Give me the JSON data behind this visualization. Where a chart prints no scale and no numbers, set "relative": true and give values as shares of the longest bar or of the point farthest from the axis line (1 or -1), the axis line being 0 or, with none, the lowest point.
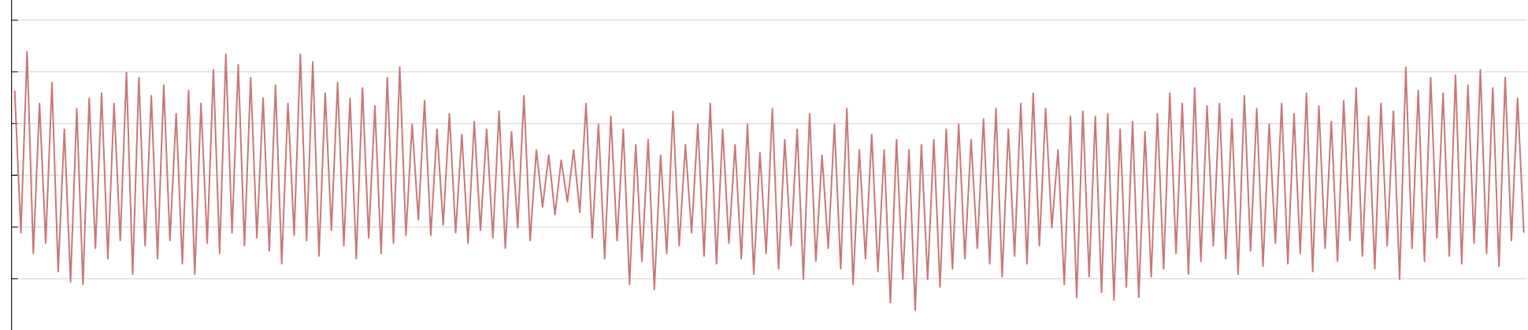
{
  "chart_data": {
    "type": "line",
    "relative": true,
    "grid": "y",
    "categories": [
      null,
      null,
      null,
      null,
      null,
      null,
      null,
      null,
      null,
      null,
      null,
      null,
      null,
      null,
      null,
      null,
      null,
      null,
      null,
      null,
      null,
      null,
      null,
      null,
      null,
      null,
      null,
      null,
      null,
      null,
      null,
      null,
      null,
      null,
      null,
      null,
      null,
      null,
      null,
      null,
      null,
      null,
      null,
      null,
      null,
      null,
      null,
      null,
      null,
      null,
      null,
      null,
      null,
      null,
      null,
      null,
      null,
      null,
      null,
      null,
      null,
      null,
      null,
      null,
      null,
      null,
      null,
      null,
      null,
      null,
      null,
      null,
      null,
      null,
      null,
      null,
      null,
      null,
      null,
      null,
      null,
      null,
      null,
      null,
      null,
      null,
      null,
      null,
      null,
      null,
      null,
      null,
      null,
      null,
      null,
      null,
      null,
      null,
      null,
      null,
      null,
      null,
      null,
      null,
      null,
      null,
      null,
      null,
      null,
      null,
      null,
      null,
      null,
      null,
      null,
      null,
      null,
      null,
      null,
      null,
      null,
      null,
      null,
      null,
      null,
      null,
      null,
      null,
      null,
      null,
      null,
      null,
      null,
      null,
      null,
      null,
      null,
      null,
      null,
      null,
      null,
      null,
      null,
      null,
      null,
      null,
      null,
      null,
      null,
      null,
      null,
      null,
      null,
      null,
      null,
      null,
      null,
      null,
      null,
      null,
      null,
      null,
      null,
      null,
      null,
      null,
      null,
      null,
      null,
      null,
      null,
      null,
      null,
      null,
      null,
      null,
      null,
      null,
      null,
      null,
      null,
      null,
      null,
      null,
      null,
      null,
      null,
      null,
      null,
      null,
      null,
      null,
      null,
      null,
      null,
      null,
      null,
      null,
      null,
      null,
      null,
      null,
      null,
      null,
      null,
      null,
      null,
      null,
      null,
      null,
      null,
      null,
      null,
      null,
      null,
      null,
      null,
      null,
      null,
      null,
      null,
      null,
      null,
      null,
      null,
      null,
      null,
      null,
      null,
      null,
      null,
      null,
      null,
      null,
      null,
      null,
      null,
      null,
      null,
      null,
      null,
      null,
      null,
      null
    ],
    "series": [
      {
        "color": "#c87878",
        "values": [
          0.85,
          0.3,
          1.0,
          0.22,
          0.8,
          0.26,
          0.88,
          0.15,
          0.7,
          0.11,
          0.78,
          0.1,
          0.82,
          0.24,
          0.84,
          0.2,
          0.8,
          0.27,
          0.92,
          0.14,
          0.9,
          0.25,
          0.83,
          0.2,
          0.87,
          0.27,
          0.76,
          0.18,
          0.85,
          0.14,
          0.8,
          0.26,
          0.93,
          0.22,
          0.99,
          0.3,
          0.95,
          0.25,
          0.9,
          0.28,
          0.82,
          0.23,
          0.87,
          0.18,
          0.8,
          0.29,
          0.99,
          0.27,
          0.96,
          0.21,
          0.84,
          0.31,
          0.88,
          0.25,
          0.82,
          0.2,
          0.86,
          0.28,
          0.79,
          0.22,
          0.9,
          0.26,
          0.94,
          0.29,
          0.72,
          0.35,
          0.81,
          0.29,
          0.7,
          0.33,
          0.76,
          0.3,
          0.68,
          0.26,
          0.73,
          0.31,
          0.7,
          0.28,
          0.77,
          0.24,
          0.69,
          0.32,
          0.83,
          0.27,
          0.62,
          0.4,
          0.6,
          0.37,
          0.58,
          0.42,
          0.62,
          0.38,
          0.8,
          0.28,
          0.72,
          0.2,
          0.75,
          0.27,
          0.7,
          0.1,
          0.64,
          0.19,
          0.66,
          0.08,
          0.6,
          0.22,
          0.77,
          0.25,
          0.64,
          0.3,
          0.72,
          0.21,
          0.8,
          0.18,
          0.7,
          0.26,
          0.64,
          0.2,
          0.72,
          0.14,
          0.61,
          0.22,
          0.78,
          0.16,
          0.66,
          0.25,
          0.7,
          0.12,
          0.76,
          0.19,
          0.6,
          0.24,
          0.72,
          0.16,
          0.78,
          0.1,
          0.62,
          0.2,
          0.68,
          0.15,
          0.62,
          0.03,
          0.66,
          0.12,
          0.62,
          0.0,
          0.64,
          0.12,
          0.66,
          0.09,
          0.7,
          0.16,
          0.72,
          0.2,
          0.66,
          0.24,
          0.74,
          0.18,
          0.78,
          0.13,
          0.7,
          0.21,
          0.8,
          0.18,
          0.84,
          0.25,
          0.78,
          0.32,
          0.62,
          0.1,
          0.75,
          0.05,
          0.77,
          0.13,
          0.75,
          0.07,
          0.76,
          0.04,
          0.7,
          0.09,
          0.73,
          0.05,
          0.69,
          0.13,
          0.76,
          0.16,
          0.84,
          0.22,
          0.8,
          0.14,
          0.86,
          0.19,
          0.79,
          0.25,
          0.8,
          0.2,
          0.74,
          0.14,
          0.83,
          0.23,
          0.78,
          0.17,
          0.72,
          0.26,
          0.8,
          0.18,
          0.76,
          0.22,
          0.84,
          0.15,
          0.79,
          0.24,
          0.73,
          0.19,
          0.81,
          0.27,
          0.86,
          0.21,
          0.75,
          0.16,
          0.8,
          0.25,
          0.77,
          0.12,
          0.94,
          0.24,
          0.85,
          0.19,
          0.9,
          0.28,
          0.84,
          0.21,
          0.91,
          0.18,
          0.87,
          0.26,
          0.93,
          0.22,
          0.86,
          0.17,
          0.9,
          0.27,
          0.82,
          0.3
        ]
      }
    ]
  }
}
